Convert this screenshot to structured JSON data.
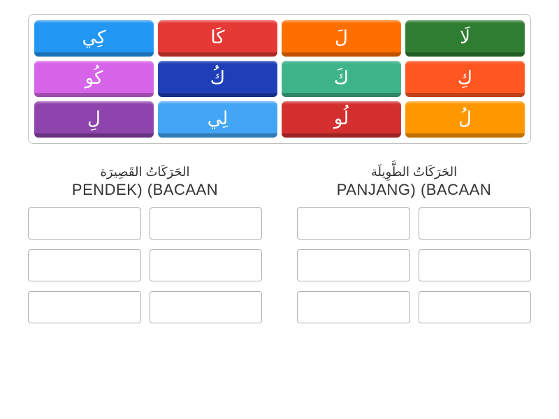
{
  "tiles": [
    {
      "text": "كِي",
      "bg": "#2196f3"
    },
    {
      "text": "كَا",
      "bg": "#e53935"
    },
    {
      "text": "لَ",
      "bg": "#ff6f00"
    },
    {
      "text": "لَا",
      "bg": "#2e7d32"
    },
    {
      "text": "كُو",
      "bg": "#d664e8"
    },
    {
      "text": "كُ",
      "bg": "#1e3fb8"
    },
    {
      "text": "كَ",
      "bg": "#3eb489"
    },
    {
      "text": "كِ",
      "bg": "#ff5722"
    },
    {
      "text": "لِ",
      "bg": "#8e44ad"
    },
    {
      "text": "لِي",
      "bg": "#42a5f5"
    },
    {
      "text": "لُو",
      "bg": "#d32f2f"
    },
    {
      "text": "لُ",
      "bg": "#ff9800"
    }
  ],
  "zones": {
    "left": {
      "title": "الحَرَكَاتُ القَصِيرَة",
      "subtitle": "PENDEK) (BACAAN"
    },
    "right": {
      "title": "الحَرَكَاتُ الطَّوِيلَة",
      "subtitle": "PANJANG) (BACAAN"
    }
  },
  "slot_count": 6
}
